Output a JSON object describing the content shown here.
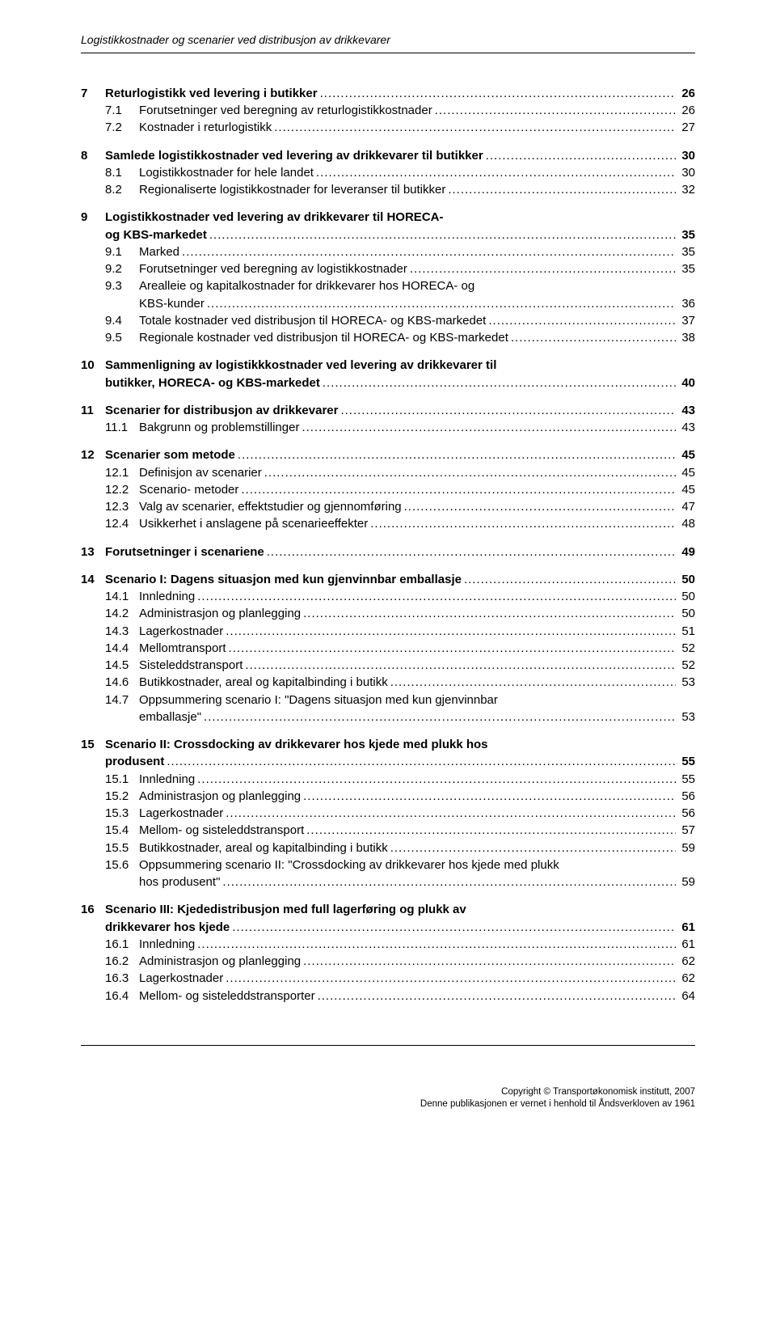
{
  "running_header": "Logistikkostnader og scenarier ved distribusjon av drikkevarer",
  "toc": [
    {
      "level": 1,
      "bold": true,
      "spaceAbove": false,
      "num": "7",
      "label": "Returlogistikk ved levering i butikker",
      "page": "26"
    },
    {
      "level": 2,
      "bold": false,
      "spaceAbove": false,
      "num": "7.1",
      "label": "Forutsetninger ved beregning av returlogistikkostnader",
      "page": "26"
    },
    {
      "level": 2,
      "bold": false,
      "spaceAbove": false,
      "num": "7.2",
      "label": "Kostnader i returlogistikk",
      "page": "27"
    },
    {
      "level": 1,
      "bold": true,
      "spaceAbove": true,
      "num": "8",
      "label": "Samlede logistikkostnader ved levering av drikkevarer til butikker",
      "page": "30"
    },
    {
      "level": 2,
      "bold": false,
      "spaceAbove": false,
      "num": "8.1",
      "label": "Logistikkostnader for hele landet",
      "page": "30"
    },
    {
      "level": 2,
      "bold": false,
      "spaceAbove": false,
      "num": "8.2",
      "label": "Regionaliserte logistikkostnader for leveranser til butikker",
      "page": "32"
    },
    {
      "level": 1,
      "bold": true,
      "spaceAbove": true,
      "num": "9",
      "label": "Logistikkostnader ved levering av drikkevarer til HORECA-",
      "label2": "og KBS-markedet",
      "page": "35"
    },
    {
      "level": 2,
      "bold": false,
      "spaceAbove": false,
      "num": "9.1",
      "label": "Marked",
      "page": "35"
    },
    {
      "level": 2,
      "bold": false,
      "spaceAbove": false,
      "num": "9.2",
      "label": "Forutsetninger ved beregning av logistikkostnader",
      "page": "35"
    },
    {
      "level": 2,
      "bold": false,
      "spaceAbove": false,
      "num": "9.3",
      "label": "Arealleie og kapitalkostnader for drikkevarer hos HORECA- og",
      "label2": "KBS-kunder",
      "page": "36"
    },
    {
      "level": 2,
      "bold": false,
      "spaceAbove": false,
      "num": "9.4",
      "label": "Totale kostnader ved distribusjon til HORECA- og KBS-markedet",
      "page": "37"
    },
    {
      "level": 2,
      "bold": false,
      "spaceAbove": false,
      "num": "9.5",
      "label": "Regionale kostnader ved distribusjon til HORECA- og KBS-markedet",
      "page": "38"
    },
    {
      "level": 1,
      "bold": true,
      "spaceAbove": true,
      "num": "10",
      "label": "Sammenligning av logistikkkostnader ved levering av drikkevarer til",
      "label2": "butikker, HORECA- og KBS-markedet",
      "page": "40"
    },
    {
      "level": 1,
      "bold": true,
      "spaceAbove": true,
      "num": "11",
      "label": "Scenarier for distribusjon av drikkevarer",
      "page": "43"
    },
    {
      "level": 2,
      "bold": false,
      "spaceAbove": false,
      "num": "11.1",
      "label": "Bakgrunn og problemstillinger",
      "page": "43"
    },
    {
      "level": 1,
      "bold": true,
      "spaceAbove": true,
      "num": "12",
      "label": "Scenarier som metode",
      "page": "45"
    },
    {
      "level": 2,
      "bold": false,
      "spaceAbove": false,
      "num": "12.1",
      "label": "Definisjon av scenarier",
      "page": "45"
    },
    {
      "level": 2,
      "bold": false,
      "spaceAbove": false,
      "num": "12.2",
      "label": "Scenario- metoder",
      "page": "45"
    },
    {
      "level": 2,
      "bold": false,
      "spaceAbove": false,
      "num": "12.3",
      "label": "Valg av scenarier, effektstudier og gjennomføring",
      "page": "47"
    },
    {
      "level": 2,
      "bold": false,
      "spaceAbove": false,
      "num": "12.4",
      "label": "Usikkerhet i anslagene på scenarieeffekter",
      "page": "48"
    },
    {
      "level": 1,
      "bold": true,
      "spaceAbove": true,
      "num": "13",
      "label": "Forutsetninger i scenariene",
      "page": "49"
    },
    {
      "level": 1,
      "bold": true,
      "spaceAbove": true,
      "num": "14",
      "label": "Scenario I: Dagens situasjon med kun gjenvinnbar emballasje",
      "page": "50"
    },
    {
      "level": 2,
      "bold": false,
      "spaceAbove": false,
      "num": "14.1",
      "label": "Innledning",
      "page": "50"
    },
    {
      "level": 2,
      "bold": false,
      "spaceAbove": false,
      "num": "14.2",
      "label": "Administrasjon og planlegging",
      "page": "50"
    },
    {
      "level": 2,
      "bold": false,
      "spaceAbove": false,
      "num": "14.3",
      "label": "Lagerkostnader",
      "page": "51"
    },
    {
      "level": 2,
      "bold": false,
      "spaceAbove": false,
      "num": "14.4",
      "label": "Mellomtransport",
      "page": "52"
    },
    {
      "level": 2,
      "bold": false,
      "spaceAbove": false,
      "num": "14.5",
      "label": "Sisteleddstransport",
      "page": "52"
    },
    {
      "level": 2,
      "bold": false,
      "spaceAbove": false,
      "num": "14.6",
      "label": "Butikkostnader, areal og kapitalbinding i butikk",
      "page": "53"
    },
    {
      "level": 2,
      "bold": false,
      "spaceAbove": false,
      "num": "14.7",
      "label": "Oppsummering scenario I: \"Dagens situasjon med kun gjenvinnbar",
      "label2": "emballasje\"",
      "page": "53"
    },
    {
      "level": 1,
      "bold": true,
      "spaceAbove": true,
      "num": "15",
      "label": "Scenario II: Crossdocking av drikkevarer hos kjede med plukk hos",
      "label2": "produsent",
      "page": "55"
    },
    {
      "level": 2,
      "bold": false,
      "spaceAbove": false,
      "num": "15.1",
      "label": "Innledning",
      "page": "55"
    },
    {
      "level": 2,
      "bold": false,
      "spaceAbove": false,
      "num": "15.2",
      "label": "Administrasjon og planlegging",
      "page": "56"
    },
    {
      "level": 2,
      "bold": false,
      "spaceAbove": false,
      "num": "15.3",
      "label": "Lagerkostnader",
      "page": "56"
    },
    {
      "level": 2,
      "bold": false,
      "spaceAbove": false,
      "num": "15.4",
      "label": "Mellom- og sisteleddstransport",
      "page": "57"
    },
    {
      "level": 2,
      "bold": false,
      "spaceAbove": false,
      "num": "15.5",
      "label": "Butikkostnader, areal og kapitalbinding i butikk",
      "page": "59"
    },
    {
      "level": 2,
      "bold": false,
      "spaceAbove": false,
      "num": "15.6",
      "label": "Oppsummering scenario II: \"Crossdocking av drikkevarer hos kjede med plukk",
      "label2": "hos produsent\"",
      "page": "59"
    },
    {
      "level": 1,
      "bold": true,
      "spaceAbove": true,
      "num": "16",
      "label": "Scenario III: Kjededistribusjon med full lagerføring og plukk av",
      "label2": "drikkevarer hos kjede",
      "page": "61"
    },
    {
      "level": 2,
      "bold": false,
      "spaceAbove": false,
      "num": "16.1",
      "label": "Innledning",
      "page": "61"
    },
    {
      "level": 2,
      "bold": false,
      "spaceAbove": false,
      "num": "16.2",
      "label": "Administrasjon og planlegging",
      "page": "62"
    },
    {
      "level": 2,
      "bold": false,
      "spaceAbove": false,
      "num": "16.3",
      "label": "Lagerkostnader",
      "page": "62"
    },
    {
      "level": 2,
      "bold": false,
      "spaceAbove": false,
      "num": "16.4",
      "label": "Mellom- og sisteleddstransporter",
      "page": "64"
    }
  ],
  "footer": {
    "line1": "Copyright © Transportøkonomisk institutt, 2007",
    "line2": "Denne publikasjonen er vernet i henhold til Åndsverkloven av 1961"
  }
}
